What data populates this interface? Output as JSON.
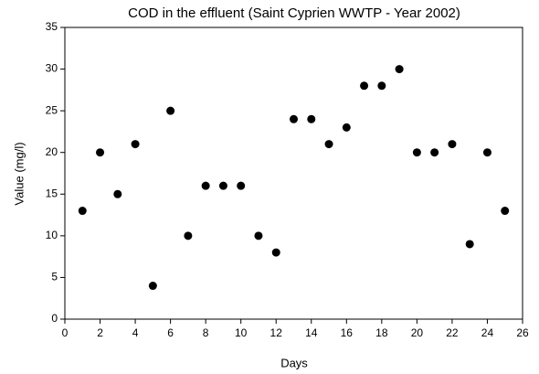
{
  "chart_data": {
    "type": "scatter",
    "title": "COD in the effluent (Saint Cyprien WWTP - Year 2002)",
    "xlabel": "Days",
    "ylabel": "Value (mg/l)",
    "x": [
      1,
      2,
      3,
      4,
      5,
      6,
      7,
      8,
      9,
      10,
      11,
      12,
      13,
      14,
      15,
      16,
      17,
      18,
      19,
      20,
      21,
      22,
      23,
      24,
      25
    ],
    "values": [
      13,
      20,
      15,
      21,
      4,
      25,
      10,
      16,
      16,
      16,
      10,
      8,
      24,
      24,
      21,
      23,
      28,
      28,
      30,
      20,
      20,
      21,
      9,
      20,
      13
    ],
    "color": "#000000",
    "xlim": [
      0,
      26
    ],
    "xticks": [
      0,
      2,
      4,
      6,
      8,
      10,
      12,
      14,
      16,
      18,
      20,
      22,
      24,
      26
    ],
    "ylim": [
      0,
      35
    ],
    "yticks": [
      0,
      5,
      10,
      15,
      20,
      25,
      30,
      35
    ]
  }
}
